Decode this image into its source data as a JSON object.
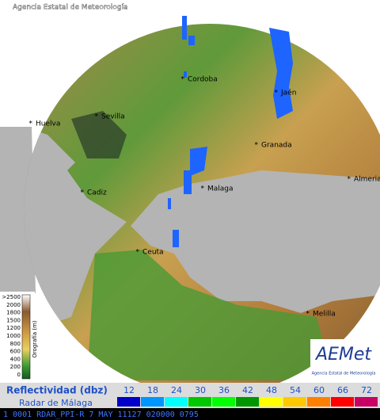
{
  "header": {
    "agency": "Agencia Estatal de Meteorología"
  },
  "cities": [
    "Cordoba",
    "Jaén",
    "Huelva",
    "Sevilla",
    "Granada",
    "Cadiz",
    "Malaga",
    "Almeria",
    "Ceuta",
    "Melilla"
  ],
  "orography": {
    "title": "Orografía (m)",
    "labels": [
      ">2500",
      "2000",
      "1800",
      "1500",
      "1200",
      "1000",
      "800",
      "600",
      "400",
      "200",
      "0"
    ]
  },
  "logo": {
    "name": "AEMet",
    "subtitle": "Agencia Estatal de Meteorología"
  },
  "legend": {
    "title": "Reflectividad (dbz)",
    "subtitle": "Radar de Málaga",
    "scale": [
      {
        "value": 12,
        "color": "#0000c8"
      },
      {
        "value": 18,
        "color": "#0096ff"
      },
      {
        "value": 24,
        "color": "#00ffff"
      },
      {
        "value": 30,
        "color": "#00c800"
      },
      {
        "value": 36,
        "color": "#00ff00"
      },
      {
        "value": 42,
        "color": "#009600"
      },
      {
        "value": 48,
        "color": "#ffff00"
      },
      {
        "value": 54,
        "color": "#ffc800"
      },
      {
        "value": 60,
        "color": "#ff8000"
      },
      {
        "value": 66,
        "color": "#ff0000"
      },
      {
        "value": 72,
        "color": "#c80064"
      }
    ]
  },
  "status": "1 0001 RDAR_PPI-R   7 MAY 11127 020000 0795"
}
